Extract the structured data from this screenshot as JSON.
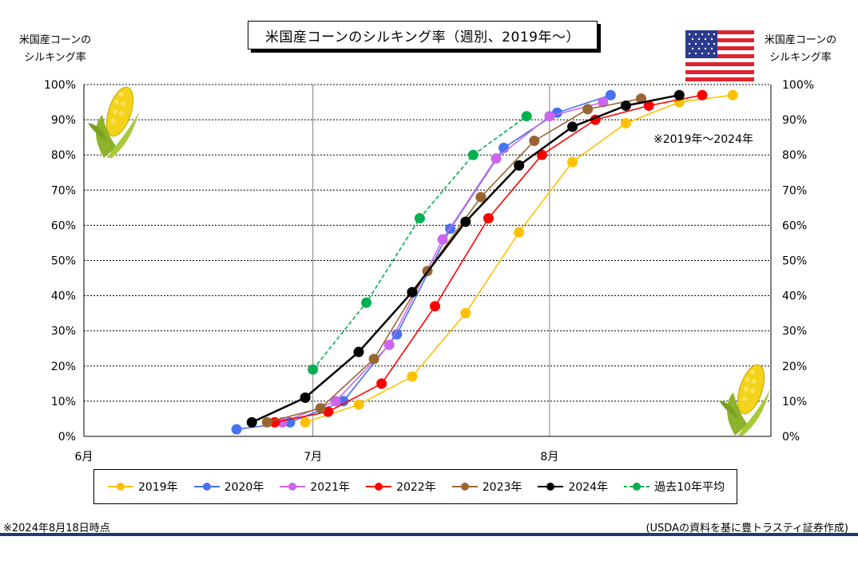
{
  "title": "米国産コーンのシルキング率（週別、2019年～）",
  "left_axis_caption": [
    "米国産コーンの",
    "シルキング率"
  ],
  "right_axis_caption": [
    "米国産コーンの",
    "シルキング率"
  ],
  "annotation": "※2019年～2024年",
  "footer_left": "※2024年8月18日時点",
  "footer_right": "(USDAの資料を基に豊トラスティ証券作成)",
  "icons": [
    "us-flag-icon",
    "corn-icon"
  ],
  "chart_data": {
    "type": "line",
    "x_axis": {
      "type": "date",
      "min": "06-01",
      "max": "08-30",
      "ticks": [
        "06-01",
        "07-01",
        "08-01"
      ],
      "tick_labels": [
        "6月",
        "7月",
        "8月"
      ]
    },
    "y_axis": {
      "min": 0,
      "max": 100,
      "step": 10,
      "unit": "%",
      "both_sides": true
    },
    "grid": {
      "horizontal": "dotted",
      "vertical": "solid-at-month-starts"
    },
    "legend_position": "bottom",
    "series": [
      {
        "name": "2019年",
        "color": "#ffc000",
        "dashed": false,
        "points": [
          [
            "06-30",
            4
          ],
          [
            "07-07",
            9
          ],
          [
            "07-14",
            17
          ],
          [
            "07-21",
            35
          ],
          [
            "07-28",
            58
          ],
          [
            "08-04",
            78
          ],
          [
            "08-11",
            89
          ],
          [
            "08-18",
            95
          ],
          [
            "08-25",
            97
          ]
        ]
      },
      {
        "name": "2020年",
        "color": "#4472f0",
        "dashed": false,
        "points": [
          [
            "06-21",
            2
          ],
          [
            "06-28",
            4
          ],
          [
            "07-05",
            10
          ],
          [
            "07-12",
            29
          ],
          [
            "07-19",
            59
          ],
          [
            "07-26",
            82
          ],
          [
            "08-02",
            92
          ],
          [
            "08-09",
            97
          ]
        ]
      },
      {
        "name": "2021年",
        "color": "#cc66ee",
        "dashed": false,
        "points": [
          [
            "06-27",
            4
          ],
          [
            "07-04",
            10
          ],
          [
            "07-11",
            26
          ],
          [
            "07-18",
            56
          ],
          [
            "07-25",
            79
          ],
          [
            "08-01",
            91
          ],
          [
            "08-08",
            95
          ]
        ]
      },
      {
        "name": "2022年",
        "color": "#ff0000",
        "dashed": false,
        "points": [
          [
            "06-26",
            4
          ],
          [
            "07-03",
            7
          ],
          [
            "07-10",
            15
          ],
          [
            "07-17",
            37
          ],
          [
            "07-24",
            62
          ],
          [
            "07-31",
            80
          ],
          [
            "08-07",
            90
          ],
          [
            "08-14",
            94
          ],
          [
            "08-21",
            97
          ]
        ]
      },
      {
        "name": "2023年",
        "color": "#996633",
        "dashed": false,
        "points": [
          [
            "06-25",
            4
          ],
          [
            "07-02",
            8
          ],
          [
            "07-09",
            22
          ],
          [
            "07-16",
            47
          ],
          [
            "07-23",
            68
          ],
          [
            "07-30",
            84
          ],
          [
            "08-06",
            93
          ],
          [
            "08-13",
            96
          ]
        ]
      },
      {
        "name": "2024年",
        "color": "#000000",
        "dashed": false,
        "points": [
          [
            "06-23",
            4
          ],
          [
            "06-30",
            11
          ],
          [
            "07-07",
            24
          ],
          [
            "07-14",
            41
          ],
          [
            "07-21",
            61
          ],
          [
            "07-28",
            77
          ],
          [
            "08-04",
            88
          ],
          [
            "08-11",
            94
          ],
          [
            "08-18",
            97
          ]
        ]
      },
      {
        "name": "過去10年平均",
        "color": "#00b050",
        "dashed": true,
        "points": [
          [
            "07-01",
            19
          ],
          [
            "07-08",
            38
          ],
          [
            "07-15",
            62
          ],
          [
            "07-22",
            80
          ],
          [
            "07-29",
            91
          ]
        ]
      }
    ]
  }
}
